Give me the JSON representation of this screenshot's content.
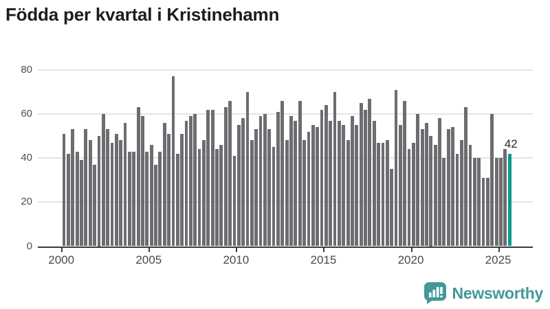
{
  "title": "Födda per kvartal i Kristinehamn",
  "chart_data": {
    "type": "bar",
    "title": "Födda per kvartal i Kristinehamn",
    "x_start_year": 2000,
    "x_end_label": "2025 Q3",
    "categories_note": "quarterly values from 2000 Q1 to 2025 Q3",
    "series": [
      {
        "name": "Födda per kvartal",
        "values": [
          51,
          42,
          53,
          43,
          39,
          53,
          48,
          37,
          50,
          60,
          53,
          47,
          51,
          48,
          56,
          43,
          43,
          63,
          59,
          43,
          46,
          37,
          43,
          56,
          51,
          77,
          42,
          51,
          57,
          59,
          60,
          44,
          48,
          62,
          62,
          44,
          46,
          63,
          66,
          41,
          55,
          58,
          70,
          48,
          53,
          59,
          60,
          53,
          45,
          61,
          66,
          48,
          59,
          57,
          66,
          48,
          52,
          55,
          54,
          62,
          64,
          57,
          70,
          57,
          55,
          48,
          59,
          55,
          65,
          62,
          67,
          57,
          47,
          47,
          48,
          35,
          71,
          55,
          66,
          44,
          47,
          60,
          53,
          56,
          50,
          46,
          58,
          40,
          53,
          54,
          42,
          48,
          63,
          46,
          40,
          40,
          31,
          31,
          60,
          40,
          40,
          44,
          42
        ]
      }
    ],
    "x_tick_labels": [
      "2000",
      "2005",
      "2010",
      "2015",
      "2020",
      "2025"
    ],
    "y_ticks": [
      "0",
      "20",
      "40",
      "60",
      "80"
    ],
    "ylim": [
      0,
      80
    ],
    "grid": "horizontal",
    "legend": "none",
    "highlight": {
      "index": 102,
      "value": 42,
      "label": "42"
    }
  },
  "colors": {
    "bar": "#6c6c71",
    "highlight": "#0d9a8f",
    "grid": "#e4e4e4",
    "axis": "#3a3a3a",
    "title_text": "#1d1d1d",
    "tick_text": "#4a4a4a",
    "brand": "#43989a"
  },
  "footer": {
    "brand": "Newsworthy"
  }
}
